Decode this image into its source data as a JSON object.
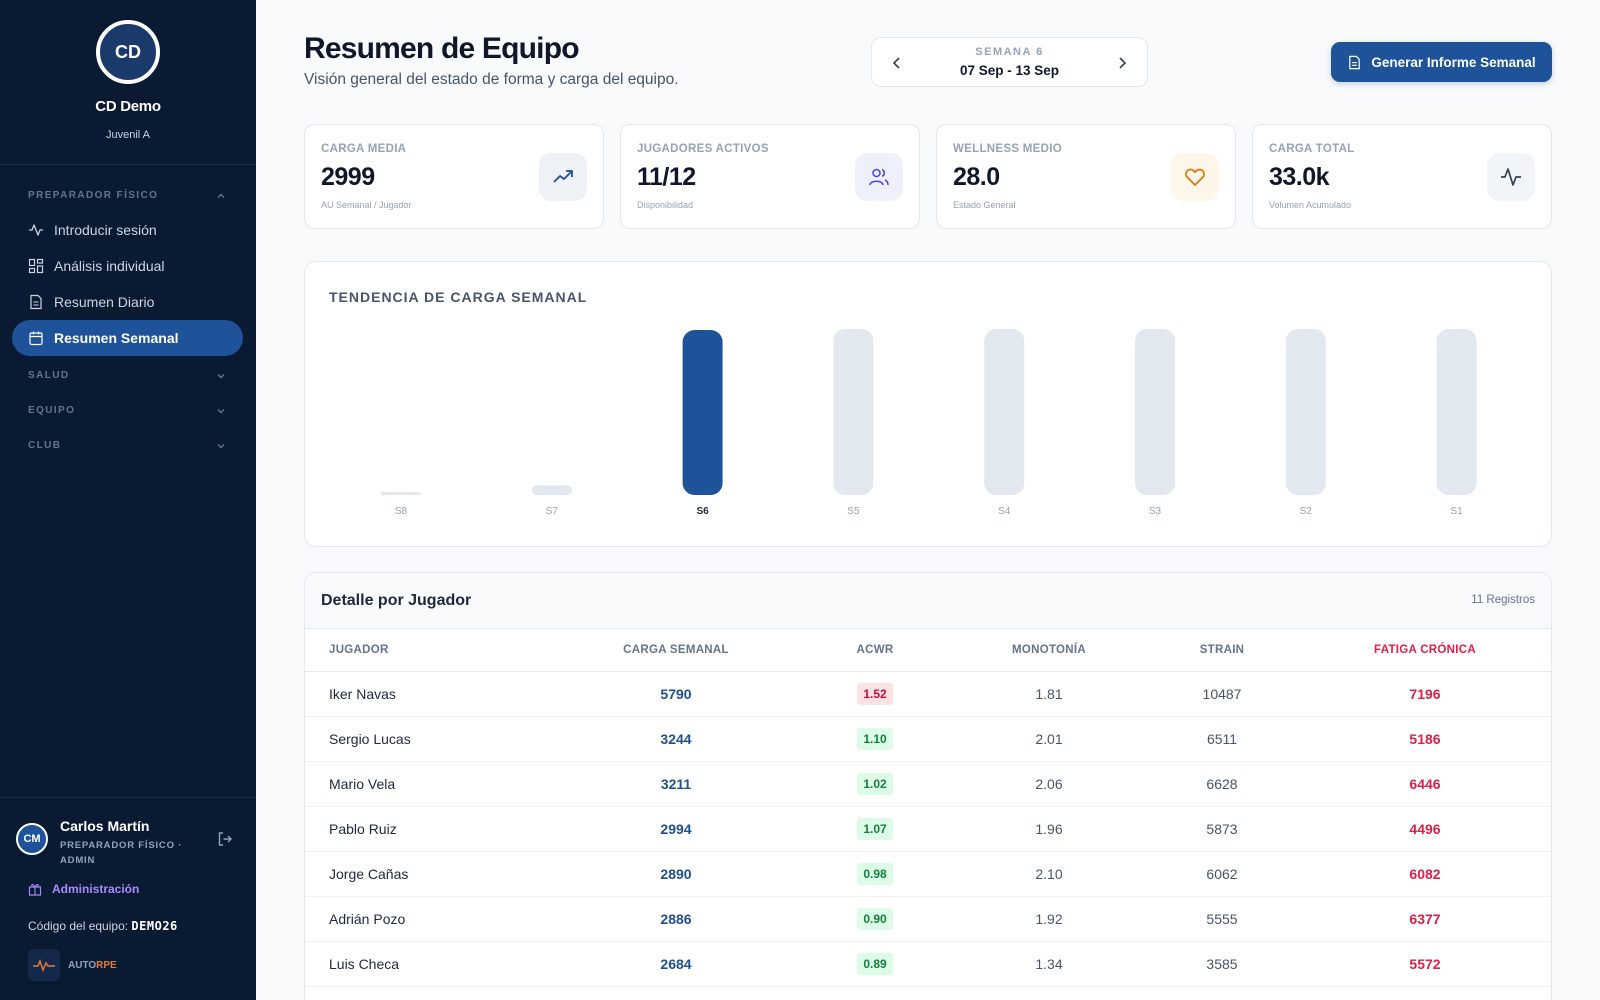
{
  "club": {
    "initials": "CD",
    "name": "CD Demo",
    "team": "Juvenil A"
  },
  "nav": {
    "sections": [
      {
        "label": "PREPARADOR FÍSICO",
        "expanded": true
      },
      {
        "label": "SALUD",
        "expanded": false
      },
      {
        "label": "EQUIPO",
        "expanded": false
      },
      {
        "label": "CLUB",
        "expanded": false
      }
    ],
    "items": [
      {
        "label": "Introducir sesión",
        "icon": "activity-icon"
      },
      {
        "label": "Análisis individual",
        "icon": "grid-icon"
      },
      {
        "label": "Resumen Diario",
        "icon": "document-icon"
      },
      {
        "label": "Resumen Semanal",
        "icon": "calendar-icon",
        "active": true
      }
    ]
  },
  "user": {
    "initials": "CM",
    "name": "Carlos Martín",
    "role": "PREPARADOR FÍSICO · ADMIN",
    "admin_label": "Administración",
    "team_code_label": "Código del equipo:",
    "team_code": "DEMO26",
    "brand_a": "AUTO",
    "brand_b": "RPE"
  },
  "header": {
    "title": "Resumen de Equipo",
    "subtitle": "Visión general del estado de forma y carga del equipo.",
    "week_label": "SEMANA 6",
    "week_range": "07 Sep - 13 Sep",
    "report_button": "Generar Informe Semanal"
  },
  "kpis": [
    {
      "label": "CARGA MEDIA",
      "value": "2999",
      "sub": "AU Semanal / Jugador",
      "icon": "trending-up-icon",
      "color": "#1e4f8f",
      "bg": "#eef2f7"
    },
    {
      "label": "JUGADORES ACTIVOS",
      "value": "11/12",
      "sub": "Disponibilidad",
      "icon": "users-icon",
      "color": "#4f46e5",
      "bg": "#eef0fb"
    },
    {
      "label": "WELLNESS MEDIO",
      "value": "28.0",
      "sub": "Estado General",
      "icon": "heart-icon",
      "color": "#d97706",
      "bg": "#fdf6e9"
    },
    {
      "label": "CARGA TOTAL",
      "value": "33.0k",
      "sub": "Volumen Acumulado",
      "icon": "activity-icon",
      "color": "#334155",
      "bg": "#f1f5f9"
    }
  ],
  "chart_data": {
    "type": "bar",
    "title": "TENDENCIA DE CARGA SEMANAL",
    "categories": [
      "S8",
      "S7",
      "S6",
      "S5",
      "S4",
      "S3",
      "S2",
      "S1"
    ],
    "values": [
      0,
      1900,
      32994,
      33200,
      33200,
      33200,
      33200,
      33200
    ],
    "highlight": "S6",
    "highlight_color": "#1e5299",
    "bar_color": "#e2e8f0",
    "grid": false
  },
  "table": {
    "title": "Detalle por Jugador",
    "count": "11 Registros",
    "columns": [
      "JUGADOR",
      "CARGA SEMANAL",
      "ACWR",
      "MONOTONÍA",
      "STRAIN",
      "FATIGA CRÓNICA"
    ],
    "rows": [
      {
        "name": "Iker Navas",
        "carga": "5790",
        "acwr": "1.52",
        "acwr_level": "high",
        "monotonia": "1.81",
        "strain": "10487",
        "fatiga": "7196"
      },
      {
        "name": "Sergio Lucas",
        "carga": "3244",
        "acwr": "1.10",
        "acwr_level": "ok",
        "monotonia": "2.01",
        "strain": "6511",
        "fatiga": "5186"
      },
      {
        "name": "Mario Vela",
        "carga": "3211",
        "acwr": "1.02",
        "acwr_level": "ok",
        "monotonia": "2.06",
        "strain": "6628",
        "fatiga": "6446"
      },
      {
        "name": "Pablo Ruiz",
        "carga": "2994",
        "acwr": "1.07",
        "acwr_level": "ok",
        "monotonia": "1.96",
        "strain": "5873",
        "fatiga": "4496"
      },
      {
        "name": "Jorge Cañas",
        "carga": "2890",
        "acwr": "0.98",
        "acwr_level": "ok",
        "monotonia": "2.10",
        "strain": "6062",
        "fatiga": "6082"
      },
      {
        "name": "Adrián Pozo",
        "carga": "2886",
        "acwr": "0.90",
        "acwr_level": "ok",
        "monotonia": "1.92",
        "strain": "5555",
        "fatiga": "6377"
      },
      {
        "name": "Luis Checa",
        "carga": "2684",
        "acwr": "0.89",
        "acwr_level": "ok",
        "monotonia": "1.34",
        "strain": "3585",
        "fatiga": "5572"
      }
    ]
  }
}
